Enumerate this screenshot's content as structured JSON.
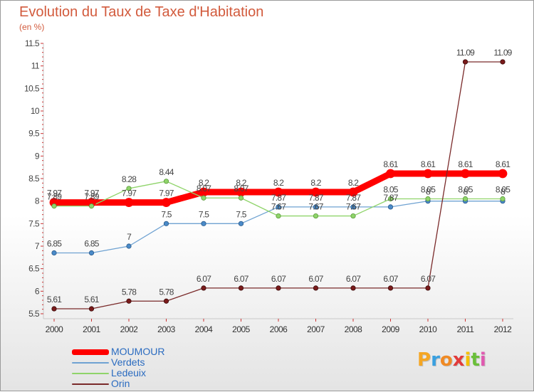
{
  "title": "Evolution du Taux de Taxe d'Habitation",
  "subtitle": "(en %)",
  "logo": "Proxiti",
  "chart_data": {
    "type": "line",
    "title": "Evolution du Taux de Taxe d'Habitation",
    "ylabel": "(en %)",
    "xlabel": "",
    "ylim": [
      5.5,
      11.5
    ],
    "yticks": [
      5.5,
      6,
      6.5,
      7,
      7.5,
      8,
      8.5,
      9,
      9.5,
      10,
      10.5,
      11,
      11.5
    ],
    "grid": false,
    "legend_placement": "bottom-left",
    "x": [
      "2000",
      "2001",
      "2002",
      "2003",
      "2004",
      "2005",
      "2006",
      "2007",
      "2008",
      "2009",
      "2010",
      "2011",
      "2012"
    ],
    "series": [
      {
        "name": "MOUMOUR",
        "color": "#ff0000",
        "values": [
          7.97,
          7.97,
          7.97,
          7.97,
          8.2,
          8.2,
          8.2,
          8.2,
          8.2,
          8.61,
          8.61,
          8.61,
          8.61
        ]
      },
      {
        "name": "Verdets",
        "color": "#6fa2d2",
        "values": [
          6.85,
          6.85,
          7,
          7.5,
          7.5,
          7.5,
          7.87,
          7.87,
          7.87,
          7.87,
          8,
          8,
          8
        ]
      },
      {
        "name": "Ledeuix",
        "color": "#8fd46a",
        "values": [
          7.89,
          7.89,
          8.28,
          8.44,
          8.07,
          8.07,
          7.67,
          7.67,
          7.67,
          8.05,
          8.05,
          8.05,
          8.05
        ]
      },
      {
        "name": "Orin",
        "color": "#7a2a2a",
        "values": [
          5.61,
          5.61,
          5.78,
          5.78,
          6.07,
          6.07,
          6.07,
          6.07,
          6.07,
          6.07,
          6.07,
          11.09,
          11.09
        ]
      }
    ],
    "data_labels": [
      {
        "series": "MOUMOUR",
        "labels": [
          "7.97",
          "7.97",
          "7.97",
          "7.97",
          "8.2",
          "8.2",
          "8.2",
          "8.2",
          "8.2",
          "8.61",
          "8.61",
          "8.61",
          "8.61"
        ]
      },
      {
        "series": "Verdets",
        "labels": [
          "6.85",
          "6.85",
          "7",
          "7.5",
          "7.5",
          "7.5",
          "7.87",
          "7.87",
          "7.87",
          "7.87",
          "8",
          "8",
          "8"
        ]
      },
      {
        "series": "Ledeuix",
        "labels": [
          "7.89",
          "7.89",
          "8.28",
          "8.44",
          "8.07",
          "8.07",
          "7.67",
          "7.67",
          "7.67",
          "8.05",
          "8.05",
          "8.05",
          "8.05"
        ]
      },
      {
        "series": "Orin",
        "labels": [
          "5.61",
          "5.61",
          "5.78",
          "5.78",
          "6.07",
          "6.07",
          "6.07",
          "6.07",
          "6.07",
          "6.07",
          "6.07",
          "11.09",
          "11.09"
        ]
      }
    ]
  }
}
